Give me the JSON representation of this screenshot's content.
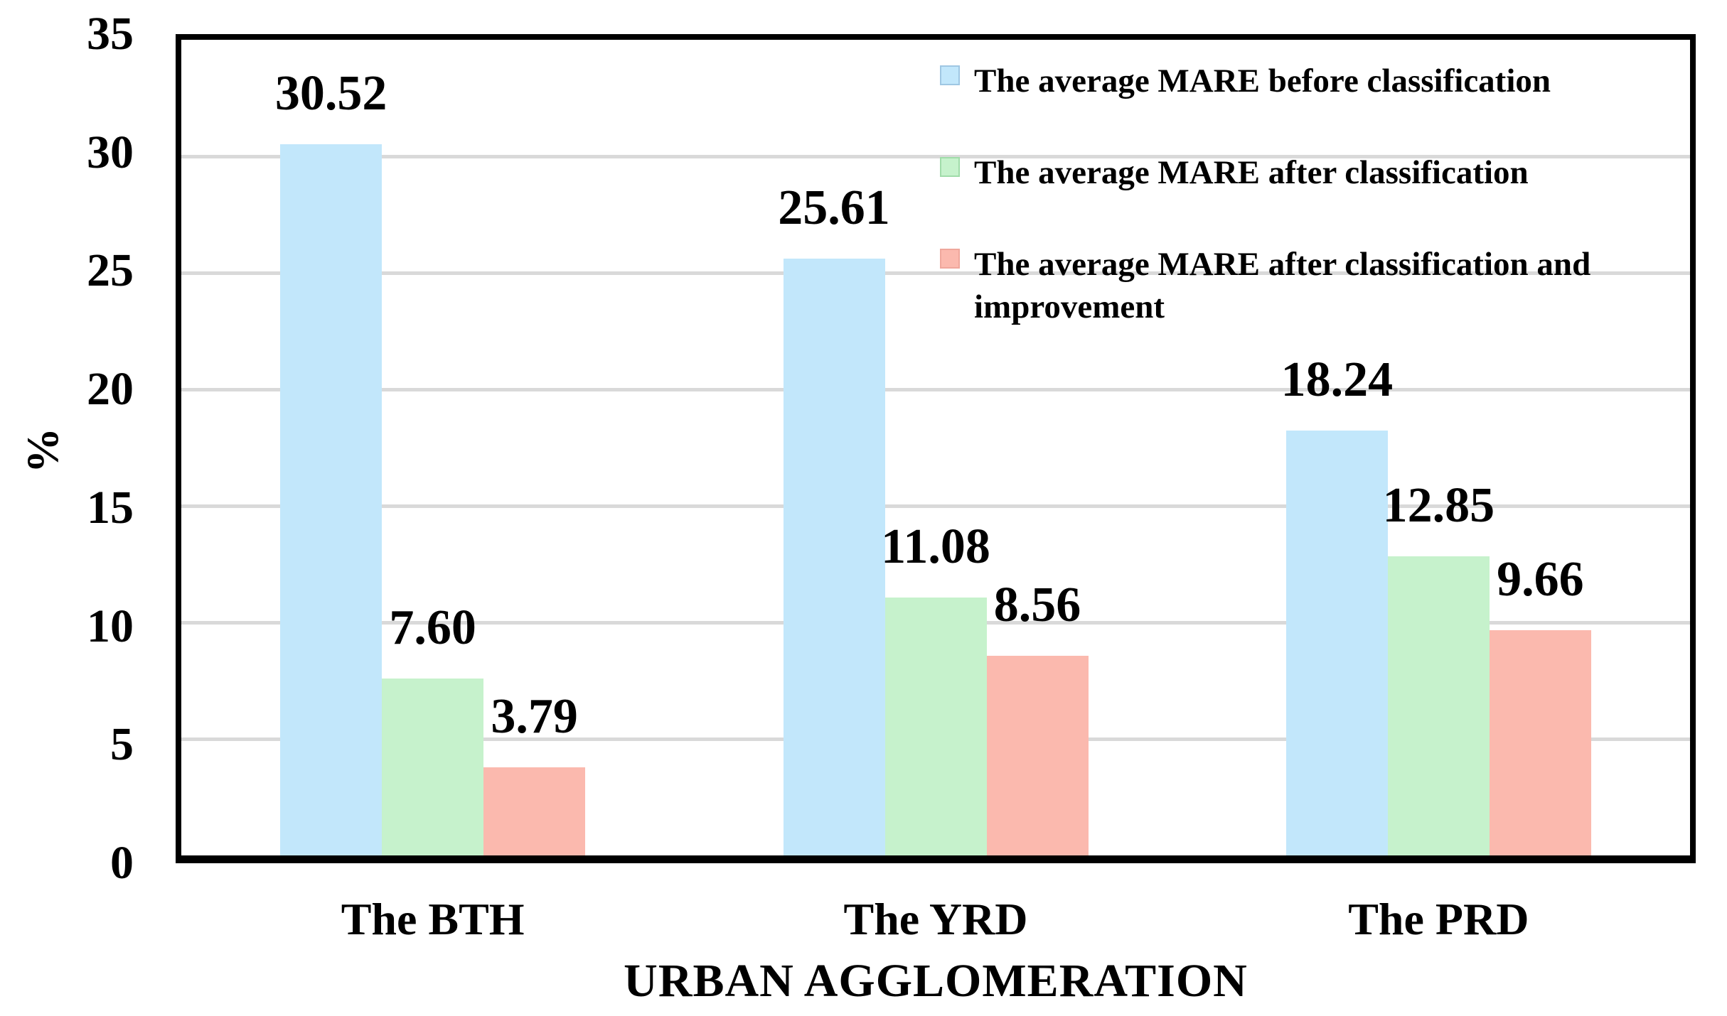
{
  "chart_data": {
    "type": "bar",
    "title": "",
    "xlabel": "URBAN AGGLOMERATION",
    "ylabel": "%",
    "ylim": [
      0,
      35
    ],
    "yticks": [
      0,
      5,
      10,
      15,
      20,
      25,
      30,
      35
    ],
    "grid": "horizontal-only",
    "legend_position": "inside-top-right",
    "categories": [
      "The BTH",
      "The YRD",
      "The PRD"
    ],
    "series": [
      {
        "name": "The average MARE before classification",
        "color": "#C2E7FB",
        "swatch_border": "#9FC7E3",
        "values": [
          30.52,
          25.61,
          18.24
        ]
      },
      {
        "name": "The average MARE after classification",
        "color": "#C6F2CC",
        "swatch_border": "#A0DCA9",
        "values": [
          7.6,
          11.08,
          12.85
        ]
      },
      {
        "name": "The average MARE after classification and improvement",
        "color": "#FBB9AE",
        "swatch_border": "#EFA79C",
        "values": [
          3.79,
          8.56,
          9.66
        ]
      }
    ],
    "value_label_decimals": 2,
    "colors": {
      "gridline": "#D9D9D9",
      "axis_frame": "#000000",
      "background": "#FFFFFF",
      "text": "#000000"
    }
  }
}
